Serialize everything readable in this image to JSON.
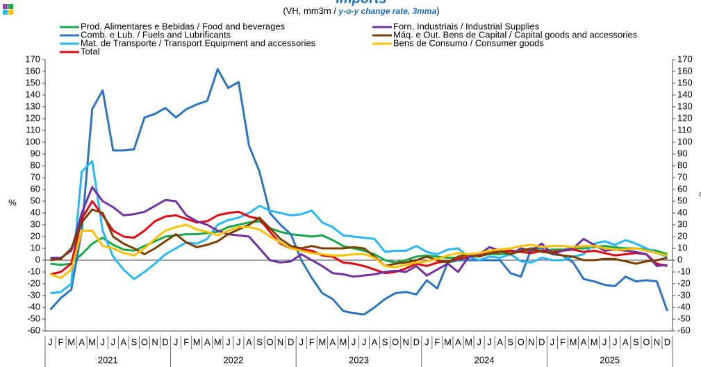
{
  "chart_data": {
    "type": "line",
    "title": "Imports",
    "subtitle": [
      "(VH, mm3m  / ",
      "y-o-y change rate, 3mma",
      ")"
    ],
    "ylabel": "%",
    "y2label": "%",
    "categories": [
      "J",
      "F",
      "M",
      "A",
      "M",
      "J",
      "J",
      "A",
      "S",
      "O",
      "N",
      "D",
      "J",
      "F",
      "M",
      "A",
      "M",
      "J",
      "J",
      "A",
      "S",
      "O",
      "N",
      "D",
      "J",
      "F",
      "M",
      "A",
      "M",
      "J",
      "J",
      "A",
      "S",
      "O",
      "N",
      "D",
      "J",
      "F",
      "M",
      "A",
      "M",
      "J",
      "J",
      "A",
      "S",
      "O",
      "N",
      "D",
      "J",
      "F",
      "M",
      "A",
      "M",
      "J",
      "J",
      "A",
      "S",
      "O",
      "N",
      "D"
    ],
    "years": [
      "2021",
      "2022",
      "2023",
      "2024",
      "2025"
    ],
    "ylim": [
      -60,
      170
    ],
    "yticks": [
      -60,
      -50,
      -40,
      -30,
      -20,
      -10,
      0,
      10,
      20,
      30,
      40,
      50,
      60,
      70,
      80,
      90,
      100,
      110,
      120,
      130,
      140,
      150,
      160,
      170
    ],
    "y2lim": [
      -60,
      170
    ],
    "y2ticks": [
      -60,
      -50,
      -40,
      -30,
      -20,
      -10,
      0,
      10,
      20,
      30,
      40,
      50,
      60,
      70,
      80,
      90,
      100,
      110,
      120,
      130,
      140,
      150,
      160,
      170
    ],
    "series": [
      {
        "name": "Prod. Alimentares e Bebidas / Food and beverages",
        "color": "#1aa64a",
        "values": [
          -3,
          -4,
          -3,
          5,
          14,
          19,
          13,
          9,
          8,
          12,
          16,
          20,
          21,
          22,
          22,
          23,
          24,
          28,
          30,
          32,
          33,
          27,
          24,
          22,
          21,
          20,
          21,
          17,
          12,
          10,
          8,
          5,
          0,
          -2,
          0,
          3,
          4,
          3,
          2,
          2,
          2,
          4,
          5,
          5,
          6,
          7,
          8,
          8,
          9,
          9,
          10,
          10,
          11,
          12,
          11,
          10,
          10,
          9,
          8,
          5
        ]
      },
      {
        "name": "Comb. e Lub. /  Fuels and Lubrificants",
        "color": "#2a74c0",
        "values": [
          -42,
          -32,
          -25,
          25,
          128,
          144,
          93,
          93,
          94,
          121,
          124,
          129,
          121,
          128,
          132,
          135,
          162,
          146,
          151,
          97,
          75,
          40,
          30,
          22,
          0,
          -15,
          -28,
          -33,
          -43,
          -45,
          -46,
          -40,
          -33,
          -28,
          -27,
          -29,
          -17,
          -24,
          -2,
          0,
          0,
          0,
          0,
          0,
          -11,
          -14,
          10,
          10,
          5,
          4,
          -2,
          -16,
          -18,
          -21,
          -22,
          -14,
          -18,
          -17,
          -18,
          -43
        ]
      },
      {
        "name": "Mat. de Transporte / Transport Equipment and accessories",
        "color": "#29b6f6",
        "values": [
          -28,
          -27,
          -20,
          75,
          84,
          25,
          3,
          -8,
          -16,
          -10,
          -3,
          5,
          10,
          15,
          14,
          18,
          30,
          34,
          36,
          40,
          46,
          42,
          40,
          38,
          39,
          42,
          32,
          28,
          21,
          20,
          19,
          18,
          7,
          8,
          8,
          12,
          7,
          5,
          9,
          10,
          3,
          0,
          3,
          2,
          5,
          -1,
          -2,
          2,
          0,
          0,
          3,
          5,
          14,
          16,
          13,
          17,
          14,
          10,
          6,
          3
        ]
      },
      {
        "name": "Total",
        "color": "#e30613",
        "values": [
          -12,
          -10,
          -3,
          35,
          50,
          38,
          25,
          20,
          19,
          25,
          33,
          37,
          38,
          35,
          32,
          33,
          38,
          40,
          41,
          37,
          35,
          24,
          14,
          10,
          9,
          8,
          4,
          3,
          -2,
          -3,
          -5,
          -8,
          -11,
          -10,
          -7,
          -3,
          -5,
          -2,
          -1,
          1,
          3,
          4,
          6,
          7,
          8,
          7,
          6,
          8,
          7,
          8,
          9,
          7,
          8,
          6,
          4,
          5,
          6,
          5,
          -3,
          -5
        ]
      },
      {
        "name": "Forn. Industriais / Industrial Supplies",
        "color": "#7030a0",
        "values": [
          2,
          2,
          8,
          40,
          62,
          50,
          45,
          38,
          39,
          41,
          46,
          51,
          50,
          38,
          33,
          30,
          25,
          22,
          21,
          20,
          10,
          0,
          -2,
          -1,
          5,
          0,
          -5,
          -11,
          -12,
          -14,
          -13,
          -12,
          -10,
          -9,
          -10,
          -5,
          -13,
          -8,
          -3,
          -10,
          3,
          5,
          11,
          8,
          5,
          10,
          8,
          14,
          5,
          8,
          10,
          18,
          13,
          8,
          9,
          8,
          7,
          5,
          -5,
          -4
        ]
      },
      {
        "name": "Máq. e Out. Bens de Capital / Capital goods and accessories",
        "color": "#7b3f00",
        "values": [
          0,
          1,
          10,
          32,
          43,
          40,
          20,
          14,
          10,
          5,
          10,
          16,
          22,
          15,
          11,
          13,
          16,
          22,
          26,
          30,
          36,
          27,
          18,
          12,
          10,
          12,
          10,
          10,
          10,
          11,
          10,
          3,
          -5,
          -3,
          -2,
          0,
          3,
          0,
          -2,
          3,
          5,
          3,
          6,
          8,
          5,
          8,
          10,
          7,
          6,
          4,
          3,
          0,
          0,
          1,
          1,
          -1,
          -3,
          -1,
          0,
          2
        ]
      },
      {
        "name": "Bens de Consumo / Consumer goods",
        "color": "#ffc000",
        "values": [
          -12,
          -15,
          -8,
          25,
          25,
          12,
          10,
          6,
          4,
          10,
          18,
          25,
          28,
          30,
          26,
          24,
          21,
          25,
          28,
          28,
          26,
          20,
          15,
          10,
          8,
          6,
          5,
          4,
          4,
          5,
          5,
          2,
          -5,
          -6,
          -4,
          -2,
          -1,
          1,
          4,
          6,
          5,
          6,
          8,
          9,
          10,
          12,
          13,
          11,
          12,
          12,
          11,
          12,
          12,
          10,
          9,
          9,
          10,
          8,
          6,
          4
        ]
      }
    ]
  }
}
